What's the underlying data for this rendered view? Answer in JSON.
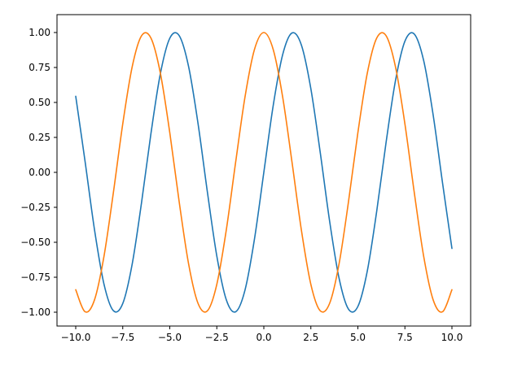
{
  "chart_data": {
    "type": "line",
    "title": "",
    "xlabel": "",
    "ylabel": "",
    "xlim": [
      -10.0,
      10.0
    ],
    "ylim": [
      -1.0,
      1.0
    ],
    "grid": false,
    "x_ticks": [
      -10.0,
      -7.5,
      -5.0,
      -2.5,
      0.0,
      2.5,
      5.0,
      7.5,
      10.0
    ],
    "x_tick_labels": [
      "−10.0",
      "−7.5",
      "−5.0",
      "−2.5",
      "0.0",
      "2.5",
      "5.0",
      "7.5",
      "10.0"
    ],
    "y_ticks": [
      1.0,
      0.75,
      0.5,
      0.25,
      0.0,
      -0.25,
      -0.5,
      -0.75,
      -1.0
    ],
    "y_tick_labels": [
      "1.00",
      "0.75",
      "0.50",
      "0.25",
      "0.00",
      "−0.25",
      "−0.50",
      "−0.75",
      "−1.00"
    ],
    "series": [
      {
        "function": "sin(x)",
        "color": "#1f77b4",
        "x": [
          -10.0,
          -9.5,
          -9.0,
          -8.5,
          -8.0,
          -7.5,
          -7.0,
          -6.5,
          -6.0,
          -5.5,
          -5.0,
          -4.5,
          -4.0,
          -3.5,
          -3.0,
          -2.5,
          -2.0,
          -1.5,
          -1.0,
          -0.5,
          0.0,
          0.5,
          1.0,
          1.5,
          2.0,
          2.5,
          3.0,
          3.5,
          4.0,
          4.5,
          5.0,
          5.5,
          6.0,
          6.5,
          7.0,
          7.5,
          8.0,
          8.5,
          9.0,
          9.5,
          10.0
        ],
        "values": [
          0.544,
          0.075,
          -0.412,
          -0.798,
          -0.989,
          -0.938,
          -0.657,
          -0.215,
          0.279,
          0.706,
          0.959,
          0.978,
          0.757,
          0.351,
          -0.141,
          -0.598,
          -0.909,
          -0.997,
          -0.841,
          -0.479,
          0.0,
          0.479,
          0.841,
          0.997,
          0.909,
          0.598,
          0.141,
          -0.351,
          -0.757,
          -0.978,
          -0.959,
          -0.706,
          -0.279,
          0.215,
          0.657,
          0.938,
          0.989,
          0.798,
          0.412,
          -0.075,
          -0.544
        ]
      },
      {
        "function": "cos(x)",
        "color": "#ff7f0e",
        "x": [
          -10.0,
          -9.5,
          -9.0,
          -8.5,
          -8.0,
          -7.5,
          -7.0,
          -6.5,
          -6.0,
          -5.5,
          -5.0,
          -4.5,
          -4.0,
          -3.5,
          -3.0,
          -2.5,
          -2.0,
          -1.5,
          -1.0,
          -0.5,
          0.0,
          0.5,
          1.0,
          1.5,
          2.0,
          2.5,
          3.0,
          3.5,
          4.0,
          4.5,
          5.0,
          5.5,
          6.0,
          6.5,
          7.0,
          7.5,
          8.0,
          8.5,
          9.0,
          9.5,
          10.0
        ],
        "values": [
          -0.839,
          -0.997,
          -0.911,
          -0.602,
          -0.146,
          0.347,
          0.754,
          0.977,
          0.96,
          0.709,
          0.284,
          -0.211,
          -0.654,
          -0.936,
          -0.99,
          -0.801,
          -0.416,
          0.071,
          0.54,
          0.878,
          1.0,
          0.878,
          0.54,
          0.071,
          -0.416,
          -0.801,
          -0.99,
          -0.936,
          -0.654,
          -0.211,
          0.284,
          0.709,
          0.96,
          0.977,
          0.754,
          0.347,
          -0.146,
          -0.602,
          -0.911,
          -0.997,
          -0.839
        ]
      }
    ]
  }
}
